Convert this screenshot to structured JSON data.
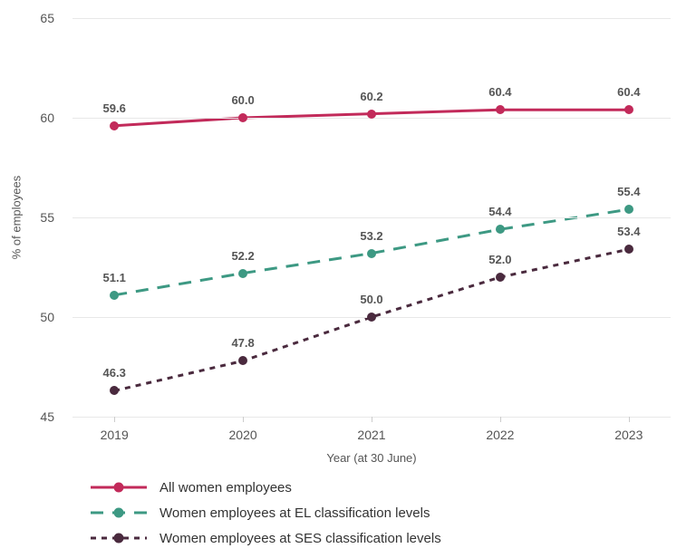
{
  "chart": {
    "type": "line",
    "background_color": "#ffffff",
    "grid_color": "#e8e8e8",
    "text_color": "#555555",
    "xlabel": "Year (at 30 June)",
    "ylabel": "% of employees",
    "label_fontsize": 13,
    "tick_fontsize": 14,
    "data_label_fontsize": 13,
    "data_label_fontweight": 700,
    "ylim": [
      45,
      65
    ],
    "yticks": [
      45,
      50,
      55,
      60,
      65
    ],
    "categories": [
      "2019",
      "2020",
      "2021",
      "2022",
      "2023"
    ],
    "series": [
      {
        "name": "All women employees",
        "values": [
          59.6,
          60.0,
          60.2,
          60.4,
          60.4
        ],
        "labels": [
          "59.6",
          "60.0",
          "60.2",
          "60.4",
          "60.4"
        ],
        "color": "#c22a5a",
        "marker_fill": "#c22a5a",
        "marker_border": "#c22a5a",
        "line_width": 3,
        "dash": "none",
        "marker_size": 10
      },
      {
        "name": "Women employees at EL classification levels",
        "values": [
          51.1,
          52.2,
          53.2,
          54.4,
          55.4
        ],
        "labels": [
          "51.1",
          "52.2",
          "53.2",
          "54.4",
          "55.4"
        ],
        "color": "#3d9983",
        "marker_fill": "#3d9983",
        "marker_border": "#3d9983",
        "line_width": 3,
        "dash": "14 10",
        "marker_size": 10
      },
      {
        "name": "Women employees at SES classification levels",
        "values": [
          46.3,
          47.8,
          50.0,
          52.0,
          53.4
        ],
        "labels": [
          "46.3",
          "47.8",
          "50.0",
          "52.0",
          "53.4"
        ],
        "color": "#4a2a3e",
        "marker_fill": "#4a2a3e",
        "marker_border": "#4a2a3e",
        "line_width": 3,
        "dash": "6 6",
        "marker_size": 10
      }
    ],
    "legend_fontsize": 15
  }
}
